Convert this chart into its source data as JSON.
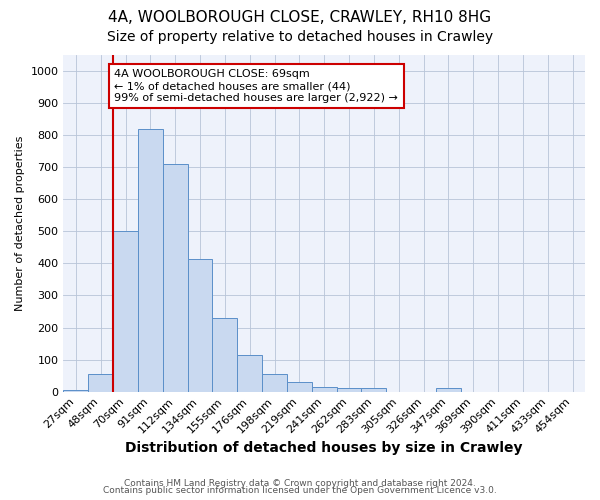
{
  "title1": "4A, WOOLBOROUGH CLOSE, CRAWLEY, RH10 8HG",
  "title2": "Size of property relative to detached houses in Crawley",
  "xlabel": "Distribution of detached houses by size in Crawley",
  "ylabel": "Number of detached properties",
  "categories": [
    "27sqm",
    "48sqm",
    "70sqm",
    "91sqm",
    "112sqm",
    "134sqm",
    "155sqm",
    "176sqm",
    "198sqm",
    "219sqm",
    "241sqm",
    "262sqm",
    "283sqm",
    "305sqm",
    "326sqm",
    "347sqm",
    "369sqm",
    "390sqm",
    "411sqm",
    "433sqm",
    "454sqm"
  ],
  "values": [
    5,
    55,
    500,
    820,
    710,
    415,
    230,
    115,
    55,
    30,
    15,
    10,
    10,
    0,
    0,
    10,
    0,
    0,
    0,
    0,
    0
  ],
  "bar_color": "#c9d9f0",
  "bar_edge_color": "#5b8fc9",
  "vline_color": "#cc0000",
  "vline_x_index": 2,
  "annotation_text": "4A WOOLBOROUGH CLOSE: 69sqm\n← 1% of detached houses are smaller (44)\n99% of semi-detached houses are larger (2,922) →",
  "annotation_box_color": "#cc0000",
  "ylim": [
    0,
    1050
  ],
  "yticks": [
    0,
    100,
    200,
    300,
    400,
    500,
    600,
    700,
    800,
    900,
    1000
  ],
  "footer1": "Contains HM Land Registry data © Crown copyright and database right 2024.",
  "footer2": "Contains public sector information licensed under the Open Government Licence v3.0.",
  "bg_color": "#eef2fb",
  "grid_color": "#b8c4d8",
  "title1_fontsize": 11,
  "title2_fontsize": 10,
  "xlabel_fontsize": 10,
  "ylabel_fontsize": 8,
  "tick_fontsize": 8,
  "annotation_fontsize": 8
}
